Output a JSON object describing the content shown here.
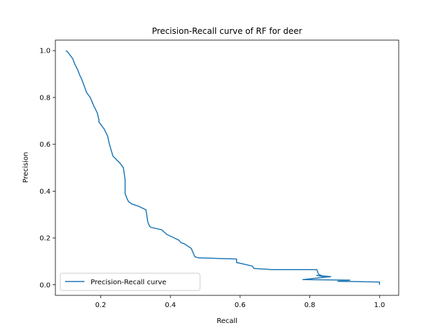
{
  "chart_data": {
    "type": "line",
    "title": "Precision-Recall curve of RF for deer",
    "xlabel": "Recall",
    "ylabel": "Precision",
    "xlim": [
      0.07,
      1.055
    ],
    "ylim": [
      -0.045,
      1.045
    ],
    "xticks": [
      0.2,
      0.4,
      0.6,
      0.8,
      1.0
    ],
    "xtick_labels": [
      "0.2",
      "0.4",
      "0.6",
      "0.8",
      "1.0"
    ],
    "yticks": [
      0.0,
      0.2,
      0.4,
      0.6,
      0.8,
      1.0
    ],
    "ytick_labels": [
      "0.0",
      "0.2",
      "0.4",
      "0.6",
      "0.8",
      "1.0"
    ],
    "grid": false,
    "legend_position": "lower-left",
    "line_color": "#1f77b4",
    "series": [
      {
        "name": "Precision-Recall curve",
        "x": [
          1.0,
          1.0,
          0.88,
          0.915,
          0.78,
          0.86,
          0.82,
          0.84,
          0.825,
          0.82,
          0.69,
          0.64,
          0.635,
          0.6,
          0.59,
          0.59,
          0.48,
          0.47,
          0.46,
          0.45,
          0.44,
          0.43,
          0.425,
          0.39,
          0.375,
          0.345,
          0.34,
          0.335,
          0.33,
          0.31,
          0.29,
          0.28,
          0.275,
          0.27,
          0.27,
          0.27,
          0.265,
          0.255,
          0.245,
          0.235,
          0.23,
          0.225,
          0.22,
          0.21,
          0.2,
          0.195,
          0.195,
          0.19,
          0.18,
          0.17,
          0.16,
          0.155,
          0.15,
          0.145,
          0.14,
          0.135,
          0.13,
          0.125,
          0.12,
          0.115,
          0.11,
          0.105,
          0.1
        ],
        "y": [
          0.0,
          0.012,
          0.015,
          0.02,
          0.022,
          0.035,
          0.04,
          0.035,
          0.045,
          0.065,
          0.065,
          0.07,
          0.08,
          0.092,
          0.095,
          0.11,
          0.115,
          0.12,
          0.155,
          0.165,
          0.175,
          0.18,
          0.19,
          0.215,
          0.235,
          0.245,
          0.25,
          0.27,
          0.32,
          0.335,
          0.345,
          0.355,
          0.37,
          0.39,
          0.43,
          0.45,
          0.5,
          0.52,
          0.535,
          0.55,
          0.575,
          0.6,
          0.635,
          0.665,
          0.685,
          0.695,
          0.705,
          0.735,
          0.765,
          0.8,
          0.82,
          0.84,
          0.86,
          0.88,
          0.895,
          0.915,
          0.93,
          0.945,
          0.965,
          0.975,
          0.985,
          0.995,
          1.0
        ]
      }
    ]
  }
}
